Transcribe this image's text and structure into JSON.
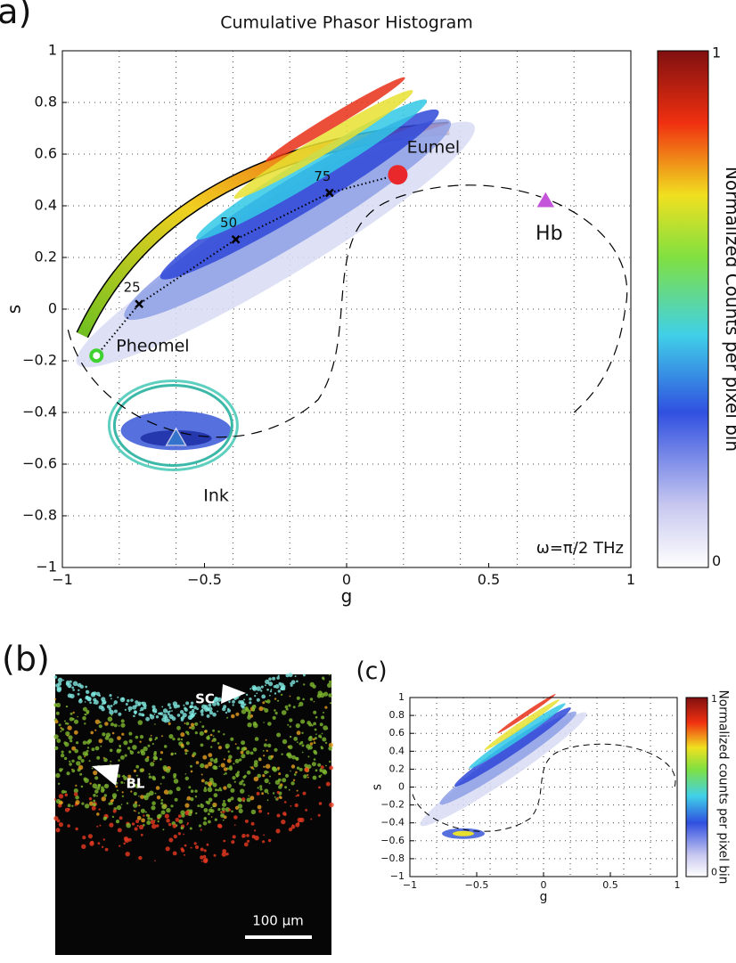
{
  "panels": [
    {
      "label": "(a)",
      "title": "Cumulative Phasor Histogram",
      "type": "phasor",
      "xlabel": "g",
      "ylabel": "s",
      "xlim": [
        -1,
        1
      ],
      "ylim": [
        -1,
        1
      ],
      "xticks": [
        -1,
        -0.5,
        0,
        0.5,
        1
      ],
      "yticks": [
        -1,
        -0.8,
        -0.6,
        -0.4,
        -0.2,
        0,
        0.2,
        0.4,
        0.6,
        0.8,
        1
      ],
      "xgrid": [
        -0.8,
        -0.6,
        -0.4,
        -0.2,
        0,
        0.2,
        0.4,
        0.6,
        0.8
      ],
      "grid": true,
      "annotation": "ω=π/2 THz",
      "colorbar": {
        "label": "Normalized Counts per pixel bin",
        "ticks": [
          0,
          1
        ]
      },
      "markers": [
        {
          "name": "Eumel",
          "g": 0.18,
          "s": 0.52,
          "color": "#e8282a",
          "shape": "circle"
        },
        {
          "name": "Pheomel",
          "g": -0.88,
          "s": -0.18,
          "color": "#3fd12f",
          "shape": "ring"
        },
        {
          "name": "Hb",
          "g": 0.7,
          "s": 0.42,
          "color": "#c454d9",
          "shape": "triangle"
        },
        {
          "name": "Ink",
          "g": -0.6,
          "s": -0.5,
          "color": "#3a8cd8",
          "shape": "triangle"
        }
      ],
      "trajectory": {
        "g": [
          -0.73,
          -0.39,
          -0.06
        ],
        "s": [
          0.02,
          0.27,
          0.45
        ],
        "labels": [
          25,
          50,
          75
        ]
      }
    },
    {
      "label": "(b)",
      "type": "image",
      "arrows": [
        "SC",
        "BL"
      ],
      "scalebar": "100 µm"
    },
    {
      "label": "(c)",
      "type": "phasor",
      "xlabel": "g",
      "ylabel": "s",
      "xlim": [
        -1,
        1
      ],
      "ylim": [
        -1,
        1
      ],
      "xticks": [
        -1,
        -0.5,
        0,
        0.5,
        1
      ],
      "yticks": [
        -1,
        -0.8,
        -0.6,
        -0.4,
        -0.2,
        0,
        0.2,
        0.4,
        0.6,
        0.8,
        1
      ],
      "xgrid": [
        -0.8,
        -0.6,
        -0.4,
        -0.2,
        0,
        0.2,
        0.4,
        0.6,
        0.8
      ],
      "grid": true,
      "colorbar": {
        "label": "Normalized counts per pixel bin",
        "ticks": [
          0,
          1
        ]
      }
    }
  ]
}
